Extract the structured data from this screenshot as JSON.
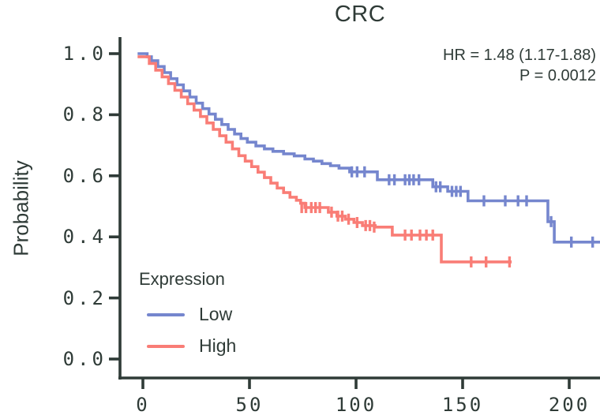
{
  "title": "CRC",
  "annotation": {
    "hr_text": "HR = 1.48 (1.17-1.88)",
    "p_text": "P = 0.0012"
  },
  "axes": {
    "y_label": "Probability",
    "x_tick_labels": [
      "0",
      "50",
      "100",
      "150",
      "200"
    ],
    "y_tick_labels": [
      "0.0",
      "0.2",
      "0.4",
      "0.6",
      "0.8",
      "1.0"
    ]
  },
  "legend": {
    "title": "Expression",
    "items": [
      {
        "label": "Low",
        "color": "#7586CE"
      },
      {
        "label": "High",
        "color": "#F97D76"
      }
    ]
  },
  "colors": {
    "axis": "#2F3B37",
    "text": "#2F3B37",
    "low_curve": "#7586CE",
    "high_curve": "#F97D76",
    "background": "#FFFFFF"
  },
  "chart_data": {
    "type": "line",
    "subtype": "kaplan-meier-step-curves",
    "title": "CRC",
    "xlabel": "",
    "ylabel": "Probability",
    "xlim": [
      0,
      215
    ],
    "ylim": [
      0.0,
      1.05
    ],
    "x_ticks": [
      0,
      50,
      100,
      150,
      200
    ],
    "y_ticks": [
      0.0,
      0.2,
      0.4,
      0.6,
      0.8,
      1.0
    ],
    "grid": false,
    "legend_position": "inside-bottom-left",
    "annotations": [
      "HR = 1.48 (1.17-1.88)",
      "P = 0.0012"
    ],
    "series": [
      {
        "name": "Low",
        "color": "#7586CE",
        "end_t": 215,
        "points": [
          [
            -2.5,
            1.0
          ],
          [
            2,
            0.99
          ],
          [
            4,
            0.977
          ],
          [
            7,
            0.958
          ],
          [
            10,
            0.938
          ],
          [
            13,
            0.918
          ],
          [
            16,
            0.898
          ],
          [
            19,
            0.878
          ],
          [
            22,
            0.858
          ],
          [
            25,
            0.838
          ],
          [
            28,
            0.82
          ],
          [
            31,
            0.802
          ],
          [
            34,
            0.785
          ],
          [
            37,
            0.768
          ],
          [
            40,
            0.752
          ],
          [
            43,
            0.737
          ],
          [
            46,
            0.722
          ],
          [
            49,
            0.71
          ],
          [
            53,
            0.698
          ],
          [
            57,
            0.688
          ],
          [
            61,
            0.68
          ],
          [
            66,
            0.672
          ],
          [
            71,
            0.665
          ],
          [
            76,
            0.655
          ],
          [
            80,
            0.648
          ],
          [
            84,
            0.64
          ],
          [
            88,
            0.633
          ],
          [
            92,
            0.625
          ],
          [
            97,
            0.613
          ],
          [
            110,
            0.587
          ],
          [
            136,
            0.564
          ],
          [
            143,
            0.549
          ],
          [
            152.5,
            0.518
          ],
          [
            190,
            0.45
          ],
          [
            193,
            0.383
          ]
        ],
        "censors": [
          [
            98,
            0.613
          ],
          [
            100.5,
            0.613
          ],
          [
            104,
            0.613
          ],
          [
            115.5,
            0.587
          ],
          [
            118,
            0.587
          ],
          [
            123,
            0.587
          ],
          [
            125,
            0.587
          ],
          [
            127,
            0.587
          ],
          [
            129.5,
            0.587
          ],
          [
            137.5,
            0.564
          ],
          [
            139.5,
            0.564
          ],
          [
            145,
            0.549
          ],
          [
            147,
            0.549
          ],
          [
            149,
            0.549
          ],
          [
            160,
            0.518
          ],
          [
            170,
            0.518
          ],
          [
            176,
            0.518
          ],
          [
            180,
            0.518
          ],
          [
            191.5,
            0.45
          ],
          [
            201,
            0.383
          ],
          [
            211,
            0.383
          ]
        ]
      },
      {
        "name": "High",
        "color": "#F97D76",
        "end_t": 173,
        "points": [
          [
            -2.5,
            0.99
          ],
          [
            3,
            0.968
          ],
          [
            6,
            0.946
          ],
          [
            9,
            0.924
          ],
          [
            12,
            0.902
          ],
          [
            15,
            0.88
          ],
          [
            18,
            0.858
          ],
          [
            21,
            0.836
          ],
          [
            24,
            0.815
          ],
          [
            27,
            0.794
          ],
          [
            30,
            0.773
          ],
          [
            33,
            0.752
          ],
          [
            36,
            0.731
          ],
          [
            39,
            0.71
          ],
          [
            42,
            0.688
          ],
          [
            45,
            0.666
          ],
          [
            48,
            0.648
          ],
          [
            51,
            0.63
          ],
          [
            54,
            0.612
          ],
          [
            57,
            0.594
          ],
          [
            60,
            0.576
          ],
          [
            63,
            0.56
          ],
          [
            66,
            0.545
          ],
          [
            69,
            0.53
          ],
          [
            72,
            0.52
          ],
          [
            74,
            0.51
          ],
          [
            76,
            0.496
          ],
          [
            87,
            0.481
          ],
          [
            91,
            0.468
          ],
          [
            95,
            0.458
          ],
          [
            99,
            0.447
          ],
          [
            103,
            0.437
          ],
          [
            109,
            0.432
          ],
          [
            117,
            0.406
          ],
          [
            140,
            0.318
          ]
        ],
        "censors": [
          [
            74.5,
            0.496
          ],
          [
            76.5,
            0.496
          ],
          [
            79,
            0.496
          ],
          [
            81,
            0.496
          ],
          [
            83,
            0.496
          ],
          [
            88.5,
            0.481
          ],
          [
            91.5,
            0.468
          ],
          [
            93.5,
            0.468
          ],
          [
            96.5,
            0.458
          ],
          [
            100.5,
            0.447
          ],
          [
            104.5,
            0.437
          ],
          [
            106.5,
            0.437
          ],
          [
            108.5,
            0.432
          ],
          [
            123,
            0.406
          ],
          [
            126,
            0.406
          ],
          [
            130,
            0.406
          ],
          [
            133,
            0.406
          ],
          [
            136,
            0.406
          ],
          [
            154,
            0.318
          ],
          [
            161,
            0.318
          ],
          [
            172,
            0.318
          ]
        ]
      }
    ]
  }
}
